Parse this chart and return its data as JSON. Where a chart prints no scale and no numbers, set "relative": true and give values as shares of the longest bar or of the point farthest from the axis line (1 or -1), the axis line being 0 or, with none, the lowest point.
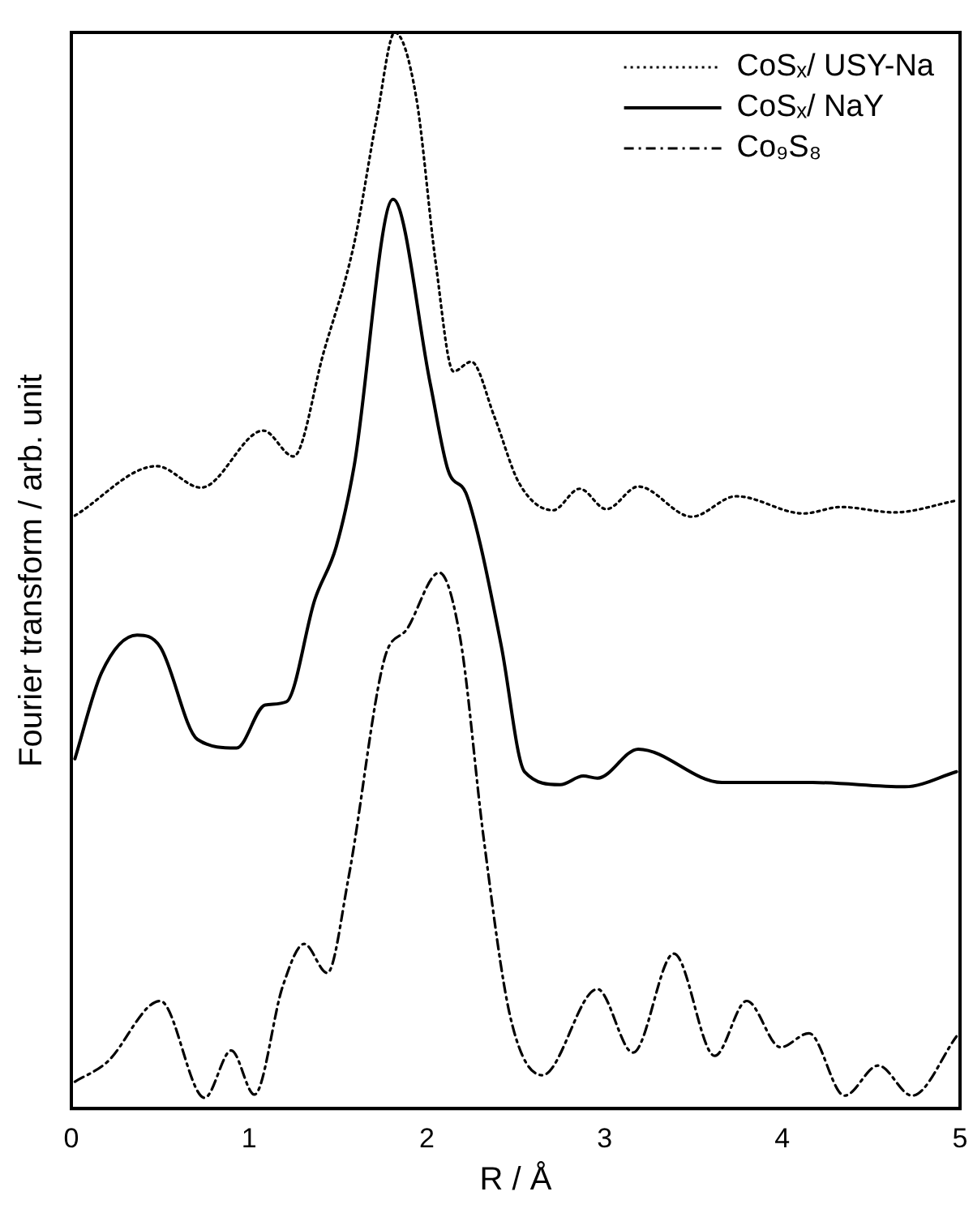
{
  "chart_data": {
    "type": "line",
    "relative": true,
    "xlabel": "R / Å",
    "ylabel": "Fourier transform / arb. unit",
    "xlim": [
      0,
      5
    ],
    "xticks": [
      0,
      1,
      2,
      3,
      4,
      5
    ],
    "legend": "top right",
    "marker": "none",
    "grid": false,
    "series": [
      {
        "name": "CoSₓ/ USY-Na",
        "color": "#000000",
        "line_style": "dotted",
        "x": [
          0.02,
          0.48,
          0.73,
          1.08,
          1.25,
          1.42,
          1.59,
          1.72,
          1.82,
          1.94,
          2.05,
          2.15,
          2.25,
          2.38,
          2.52,
          2.71,
          2.86,
          3.01,
          3.19,
          3.49,
          3.74,
          4.12,
          4.33,
          4.63,
          4.98
        ],
        "values": [
          0.551,
          0.597,
          0.577,
          0.63,
          0.606,
          0.703,
          0.803,
          0.922,
          1.0,
          0.94,
          0.786,
          0.685,
          0.694,
          0.643,
          0.581,
          0.556,
          0.576,
          0.557,
          0.578,
          0.55,
          0.569,
          0.553,
          0.559,
          0.554,
          0.565
        ]
      },
      {
        "name": "CoSₓ/ NaY",
        "color": "#000000",
        "line_style": "solid",
        "x": [
          0.02,
          0.17,
          0.37,
          0.5,
          0.71,
          0.93,
          1.09,
          1.21,
          1.37,
          1.49,
          1.59,
          1.81,
          2.02,
          2.12,
          2.22,
          2.3,
          2.42,
          2.55,
          2.75,
          2.88,
          2.96,
          3.19,
          3.66,
          4.17,
          4.69,
          4.98
        ],
        "values": [
          0.325,
          0.405,
          0.44,
          0.429,
          0.343,
          0.335,
          0.375,
          0.378,
          0.473,
          0.522,
          0.596,
          0.845,
          0.673,
          0.593,
          0.572,
          0.525,
          0.429,
          0.313,
          0.301,
          0.309,
          0.307,
          0.334,
          0.303,
          0.303,
          0.299,
          0.313
        ]
      },
      {
        "name": "Co₉S₈",
        "color": "#000000",
        "line_style": "dashdot",
        "x": [
          0.02,
          0.2,
          0.5,
          0.75,
          0.9,
          1.03,
          1.19,
          1.31,
          1.44,
          1.56,
          1.76,
          1.89,
          2.07,
          2.19,
          2.32,
          2.47,
          2.65,
          2.96,
          3.16,
          3.39,
          3.62,
          3.8,
          3.99,
          4.15,
          4.35,
          4.54,
          4.73,
          4.98
        ],
        "values": [
          0.025,
          0.043,
          0.1,
          0.01,
          0.054,
          0.013,
          0.114,
          0.153,
          0.126,
          0.215,
          0.417,
          0.446,
          0.498,
          0.435,
          0.251,
          0.085,
          0.031,
          0.111,
          0.052,
          0.144,
          0.049,
          0.1,
          0.057,
          0.07,
          0.012,
          0.04,
          0.012,
          0.067
        ]
      }
    ]
  }
}
